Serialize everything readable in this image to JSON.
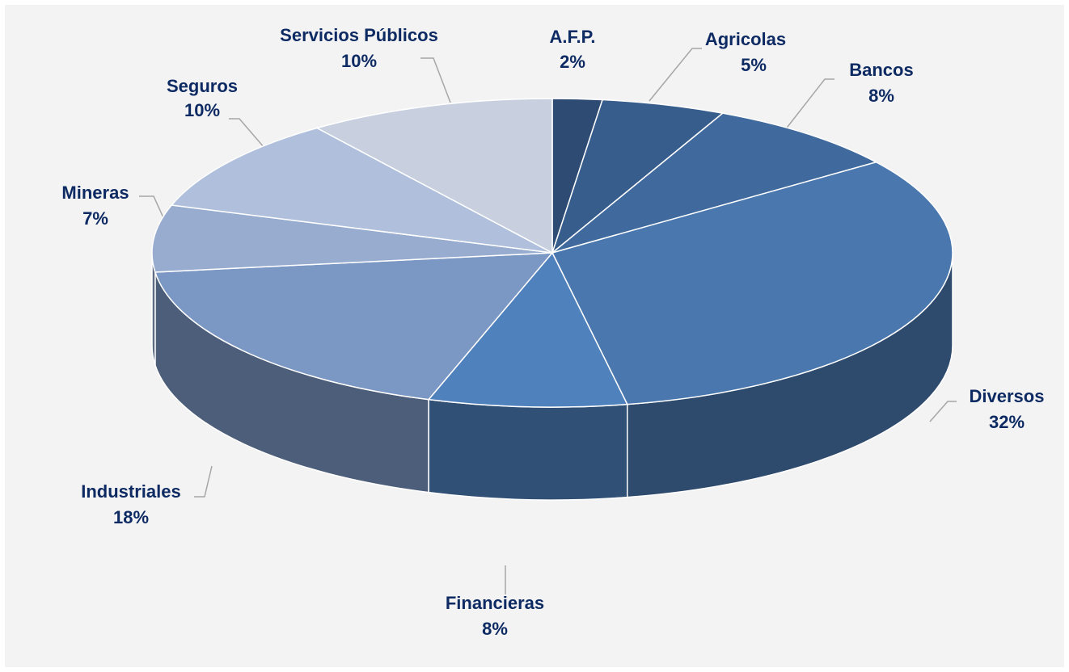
{
  "chart_data": {
    "type": "pie",
    "categories": [
      "A.F.P.",
      "Agricolas",
      "Bancos",
      "Diversos",
      "Financieras",
      "Industriales",
      "Mineras",
      "Seguros",
      "Servicios Públicos"
    ],
    "values": [
      2,
      5,
      8,
      32,
      8,
      18,
      7,
      10,
      10
    ],
    "value_labels": [
      "2%",
      "5%",
      "8%",
      "32%",
      "8%",
      "18%",
      "7%",
      "10%",
      "10%"
    ],
    "colors": [
      "#2e4b73",
      "#375d8c",
      "#406a9e",
      "#4a78ae",
      "#4f81bd",
      "#7b97c3",
      "#98acd0",
      "#b0c0dc",
      "#c8d0e0"
    ]
  }
}
